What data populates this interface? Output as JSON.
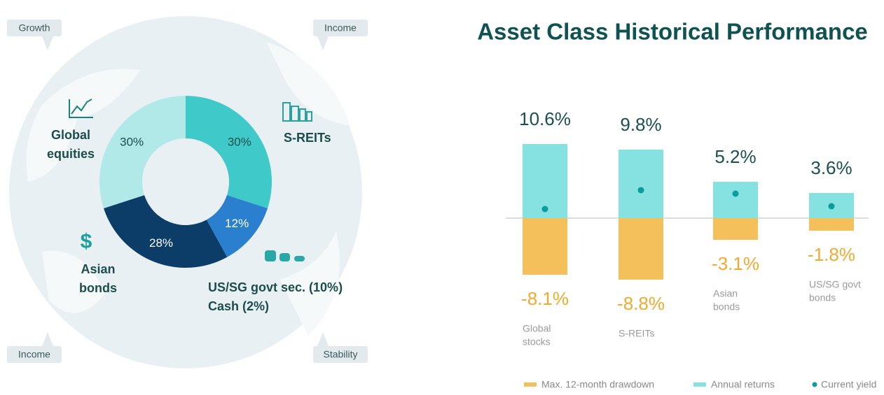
{
  "chart_data": [
    {
      "type": "pie",
      "annotations": [
        "Growth",
        "Income",
        "Income",
        "Stability"
      ],
      "categories": [
        [
          "S-REITs"
        ],
        [
          "US/SG govt sec. (10%)",
          "Cash (2%)"
        ],
        [
          "Asian",
          "bonds"
        ],
        [
          "Global",
          "equities"
        ]
      ],
      "values": [
        30,
        12,
        28,
        30
      ],
      "value_labels": [
        "30%",
        "12%",
        "28%",
        "30%"
      ],
      "colors": [
        "#3fc9c9",
        "#2b7fcf",
        "#0c3d69",
        "#b1e9e9"
      ]
    },
    {
      "type": "bar",
      "title": "Asset Class Historical Performance",
      "categories": [
        [
          "Global",
          "stocks"
        ],
        [
          "S-REITs"
        ],
        [
          "Asian",
          "bonds"
        ],
        [
          "US/SG govt",
          "bonds"
        ]
      ],
      "ylim": [
        -10,
        12
      ],
      "series": [
        {
          "name": "Max. 12-month drawdown",
          "color": "#f4c05c",
          "kind": "bar",
          "values": [
            -8.1,
            -8.8,
            -3.1,
            -1.8
          ],
          "value_labels": [
            "-8.1%",
            "-8.8%",
            "-3.1%",
            "-1.8%"
          ]
        },
        {
          "name": "Annual returns",
          "color": "#86e1e1",
          "kind": "bar",
          "values": [
            10.6,
            9.8,
            5.2,
            3.6
          ],
          "value_labels": [
            "10.6%",
            "9.8%",
            "5.2%",
            "3.6%"
          ]
        },
        {
          "name": "Current yield",
          "color": "#0b9c9c",
          "kind": "dot",
          "values": [
            1.3,
            4.0,
            3.5,
            1.7
          ]
        }
      ]
    }
  ]
}
